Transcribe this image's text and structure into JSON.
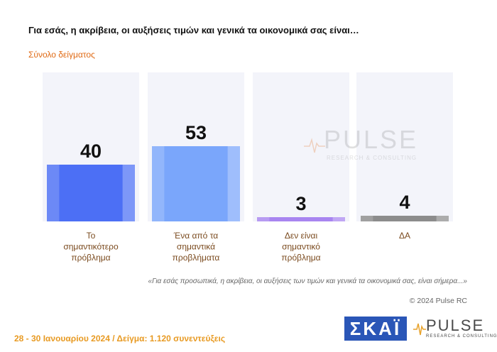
{
  "header": {
    "title": "Για εσάς, η ακρίβεια, οι αυξήσεις τιμών και γενικά τα οικονομικά σας είναι…",
    "subtitle": "Σύνολο δείγματος"
  },
  "chart_data": {
    "type": "bar",
    "categories": [
      "Το σημαντικότερο πρόβλημα",
      "Ένα από τα σημαντικά προβλήματα",
      "Δεν είναι σημαντικό πρόβλημα",
      "ΔΑ"
    ],
    "category_lines": [
      [
        "Το",
        "σημαντικότερο",
        "πρόβλημα"
      ],
      [
        "Ένα από τα",
        "σημαντικά",
        "προβλήματα"
      ],
      [
        "Δεν είναι",
        "σημαντικό",
        "πρόβλημα"
      ],
      [
        "ΔΑ"
      ]
    ],
    "values": [
      40,
      53,
      3,
      4
    ],
    "colors": [
      "#4c6ff5",
      "#7aa6fb",
      "#a885f0",
      "#8c8c8c"
    ],
    "ylim": [
      0,
      100
    ],
    "grid": false
  },
  "quote": "«Για εσάς προσωπικά, η ακρίβεια, οι αυξήσεις των τιμών και γενικά τα οικονομικά σας, είναι σήμερα...»",
  "copyright": "© 2024 Pulse RC",
  "footer": "28 - 30 Ιανουαρίου 2024  /  Δείγμα:  1.120 συνεντεύξεις",
  "logos": {
    "skai": "ΣΚΑΪ",
    "pulse_name": "PULSE",
    "pulse_tag": "RESEARCH & CONSULTING"
  }
}
